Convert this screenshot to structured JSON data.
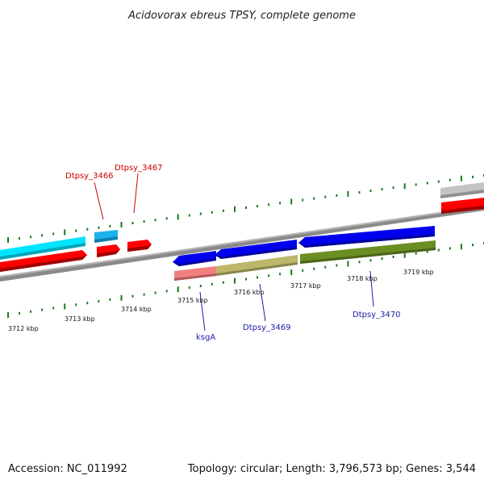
{
  "title": "Acidovorax ebreus TPSY, complete genome",
  "footer": {
    "accession": "Accession: NC_011992",
    "stats": "Topology: circular; Length: 3,796,573 bp; Genes: 3,544"
  },
  "colors": {
    "backbone": "#8a8a8a",
    "tick": "#1a7a1a",
    "cds_forward_cyan": "#00e5ff",
    "cds_forward_lightblue": "#1ab2ee",
    "cds_red": "#ff0000",
    "cds_blue": "#0000ee",
    "cds_khaki": "#bdb76b",
    "cds_olive": "#6b8e23",
    "cds_salmon": "#f08080",
    "cds_grey": "#c0c0c0",
    "label_red": "#cc0000",
    "label_blue": "#1a1aa6"
  },
  "kbp_labels": [
    "3712 kbp",
    "3713 kbp",
    "3714 kbp",
    "3715 kbp",
    "3716 kbp",
    "3717 kbp",
    "3718 kbp",
    "3719 kbp"
  ],
  "gene_labels": {
    "dtpsy_3466": "Dtpsy_3466",
    "dtpsy_3467": "Dtpsy_3467",
    "ksgA": "ksgA",
    "dtpsy_3469": "Dtpsy_3469",
    "dtpsy_3470": "Dtpsy_3470"
  }
}
